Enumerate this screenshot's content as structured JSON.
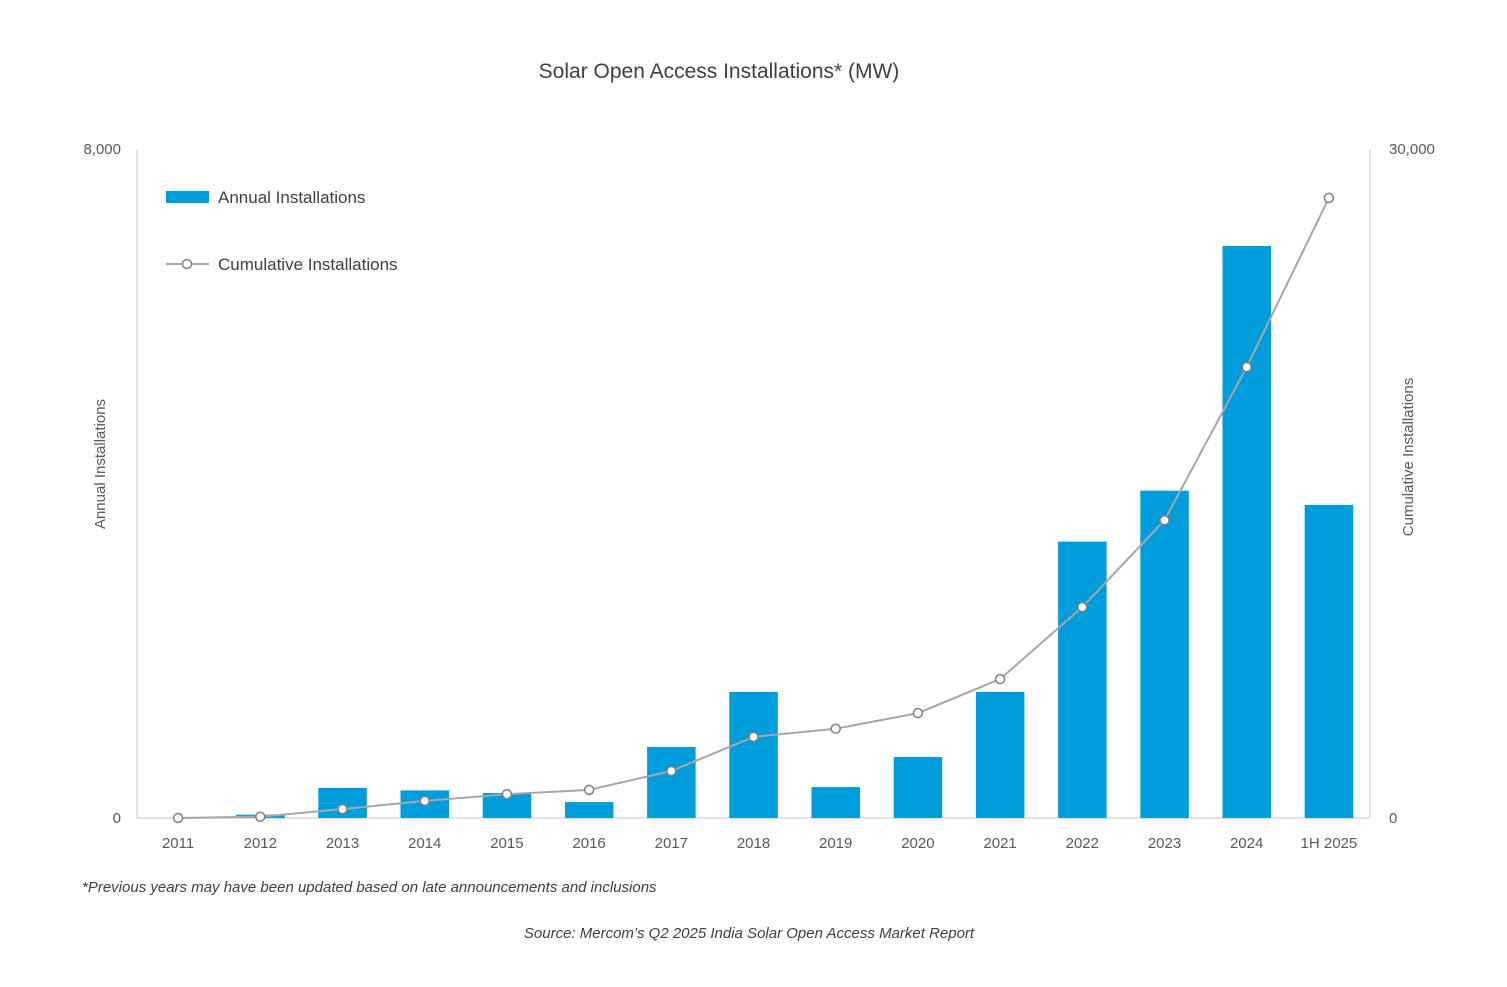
{
  "chart_data": {
    "type": "bar",
    "title": "Solar Open Access Installations* (MW)",
    "categories": [
      "2011",
      "2012",
      "2013",
      "2014",
      "2015",
      "2016",
      "2017",
      "2018",
      "2019",
      "2020",
      "2021",
      "2022",
      "2023",
      "2024",
      "1H 2025"
    ],
    "series": [
      {
        "name": "Annual Installations",
        "type": "bar",
        "axis": "left",
        "color": "#009ddc",
        "values": [
          0,
          40,
          360,
          330,
          300,
          190,
          850,
          1510,
          370,
          730,
          1510,
          3310,
          3920,
          6850,
          3750
        ]
      },
      {
        "name": "Cumulative Installations",
        "type": "line",
        "axis": "right",
        "color": "#a6a6a6",
        "values": [
          0,
          60,
          400,
          770,
          1070,
          1260,
          2110,
          3640,
          4010,
          4710,
          6240,
          9470,
          13370,
          20250,
          27850
        ]
      }
    ],
    "ylabel": "Annual Installations",
    "ylim": [
      0,
      8000
    ],
    "y_ticks": [
      "0",
      "8,000"
    ],
    "y2label": "Cumulative Installations",
    "y2lim": [
      0,
      30000
    ],
    "y2_ticks": [
      "0",
      "30,000"
    ],
    "grid": false,
    "legend_placement": "top-left"
  },
  "footnote": "*Previous years may have been updated based on late announcements and inclusions",
  "source": "Source: Mercom’s Q2 2025 India Solar Open Access Market Report"
}
